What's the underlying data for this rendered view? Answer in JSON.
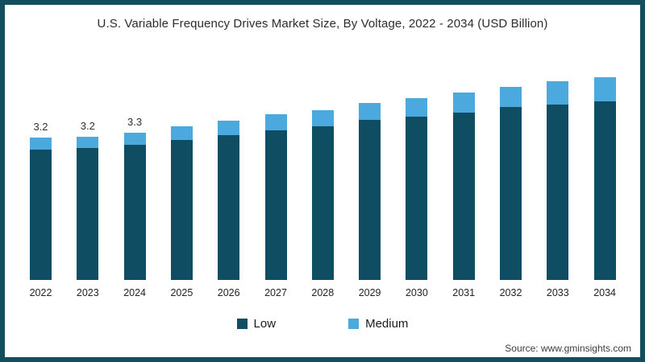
{
  "title": "U.S. Variable Frequency Drives Market Size, By Voltage, 2022 - 2034 (USD Billion)",
  "source": "Source: www.gminsights.com",
  "colors": {
    "frame_border": "#114f5f",
    "background": "#ffffff",
    "low_series": "#0f4d62",
    "medium_series": "#4ba9de",
    "title_text": "#2d2d2d",
    "axis_text": "#222222"
  },
  "legend": {
    "items": [
      {
        "label": "Low",
        "color": "#0f4d62"
      },
      {
        "label": "Medium",
        "color": "#4ba9de"
      }
    ]
  },
  "chart_data": {
    "type": "bar",
    "stacked": true,
    "title": "U.S. Variable Frequency Drives Market Size, By Voltage, 2022 - 2034 (USD Billion)",
    "xlabel": "",
    "ylabel": "USD Billion",
    "ylim": [
      0,
      5
    ],
    "grid": false,
    "legend_position": "bottom",
    "categories": [
      "2022",
      "2023",
      "2024",
      "2025",
      "2026",
      "2027",
      "2028",
      "2029",
      "2030",
      "2031",
      "2032",
      "2033",
      "2034"
    ],
    "series": [
      {
        "name": "Low",
        "color": "#0f4d62",
        "values": [
          2.93,
          2.97,
          3.04,
          3.15,
          3.25,
          3.36,
          3.45,
          3.6,
          3.67,
          3.76,
          3.89,
          3.94,
          4.01
        ]
      },
      {
        "name": "Medium",
        "color": "#4ba9de",
        "values": [
          0.27,
          0.25,
          0.27,
          0.31,
          0.33,
          0.36,
          0.36,
          0.38,
          0.42,
          0.45,
          0.45,
          0.52,
          0.54
        ]
      }
    ],
    "total_labels": [
      "3.2",
      "3.2",
      "3.3",
      "",
      "",
      "",
      "",
      "",
      "",
      "",
      "",
      "",
      ""
    ]
  }
}
